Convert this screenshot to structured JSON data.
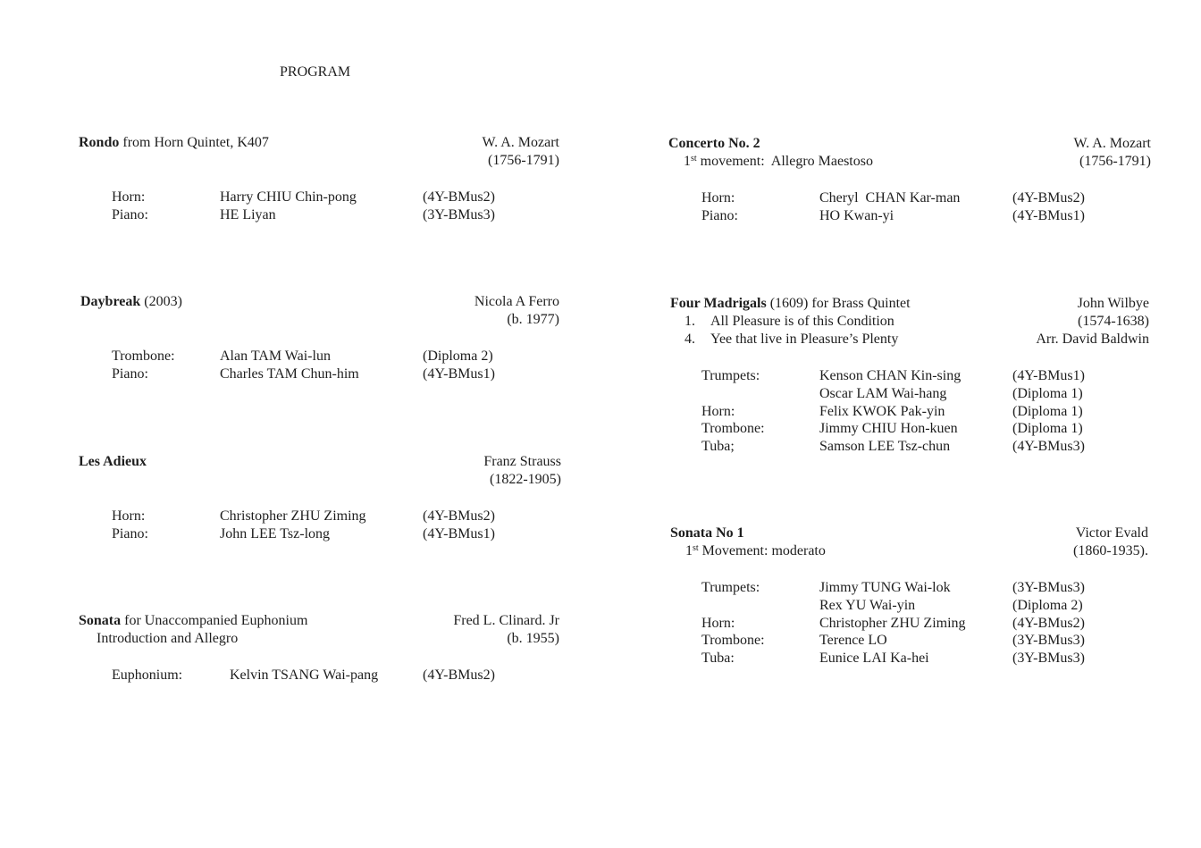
{
  "header": {
    "title": "PROGRAM"
  },
  "pieces": [
    {
      "title_bold": "Rondo",
      "title_rest": "from Horn Quintet, K407",
      "subtitles": [],
      "composer": [
        "W. A. Mozart",
        "(1756-1791)"
      ],
      "performers": [
        [
          "Horn:",
          "Harry CHIU Chin-pong",
          "(4Y-BMus2)"
        ],
        [
          "Piano:",
          "HE Liyan",
          "(3Y-BMus3)"
        ]
      ]
    },
    {
      "title_bold": "Daybreak",
      "title_rest": "(2003)",
      "subtitles": [],
      "composer": [
        "Nicola A Ferro",
        "(b. 1977)"
      ],
      "performers": [
        [
          "Trombone:",
          "Alan TAM Wai-lun",
          "(Diploma 2)"
        ],
        [
          "Piano:",
          "Charles TAM Chun-him",
          "(4Y-BMus1)"
        ]
      ]
    },
    {
      "title_bold": "Les Adieux",
      "title_rest": null,
      "subtitles": [],
      "composer": [
        "Franz Strauss",
        "(1822-1905)"
      ],
      "performers": [
        [
          "Horn:",
          "Christopher ZHU Ziming",
          "(4Y-BMus2)"
        ],
        [
          "Piano:",
          "John LEE Tsz-long",
          "(4Y-BMus1)"
        ]
      ]
    },
    {
      "title_bold": "Sonata",
      "title_rest": "for Unaccompanied Euphonium",
      "subtitles": [
        {
          "text": "Introduction and Allegro"
        }
      ],
      "composer": [
        "Fred L. Clinard. Jr",
        "(b. 1955)"
      ],
      "performers": [
        [
          "Euphonium:",
          "Kelvin TSANG Wai-pang",
          "(4Y-BMus2)"
        ]
      ]
    },
    {
      "title_bold": "Concerto No. 2",
      "title_rest": null,
      "subtitles": [
        {
          "number": "1",
          "sup": "st",
          "text": "movement:  Allegro Maestoso"
        }
      ],
      "composer": [
        "W. A. Mozart",
        "(1756-1791)"
      ],
      "performers": [
        [
          "Horn:",
          "Cheryl  CHAN Kar-man",
          "(4Y-BMus2)"
        ],
        [
          "Piano:",
          "HO Kwan-yi",
          "(4Y-BMus1)"
        ]
      ]
    },
    {
      "title_bold": "Four Madrigals",
      "title_rest": "(1609) for Brass Quintet",
      "subtitles": [
        {
          "marker": "1.",
          "text": "All Pleasure is of this Condition"
        },
        {
          "marker": "4.",
          "text": "Yee that live in Pleasure’s Plenty"
        }
      ],
      "composer": [
        "John Wilbye",
        "(1574-1638)",
        "Arr. David Baldwin"
      ],
      "performers": [
        [
          "Trumpets:",
          "Kenson CHAN Kin-sing",
          "(4Y-BMus1)"
        ],
        [
          null,
          "Oscar LAM Wai-hang",
          "(Diploma 1)"
        ],
        [
          "Horn:",
          "Felix KWOK Pak-yin",
          "(Diploma 1)"
        ],
        [
          "Trombone:",
          "Jimmy CHIU Hon-kuen",
          "(Diploma 1)"
        ],
        [
          "Tuba;",
          "Samson LEE Tsz-chun",
          "(4Y-BMus3)"
        ]
      ]
    },
    {
      "title_bold": "Sonata No 1",
      "title_rest": null,
      "subtitles": [
        {
          "number": "1",
          "sup": "st",
          "text": "Movement: moderato"
        }
      ],
      "composer": [
        "Victor Evald",
        "(1860-1935)."
      ],
      "performers": [
        [
          "Trumpets:",
          "Jimmy TUNG Wai-lok",
          "(3Y-BMus3)"
        ],
        [
          null,
          "Rex YU Wai-yin",
          "(Diploma 2)"
        ],
        [
          "Horn:",
          "Christopher ZHU Ziming",
          "(4Y-BMus2)"
        ],
        [
          "Trombone:",
          "Terence LO",
          "(3Y-BMus3)"
        ],
        [
          "Tuba:",
          "Eunice LAI Ka-hei",
          "(3Y-BMus3)"
        ]
      ]
    }
  ]
}
